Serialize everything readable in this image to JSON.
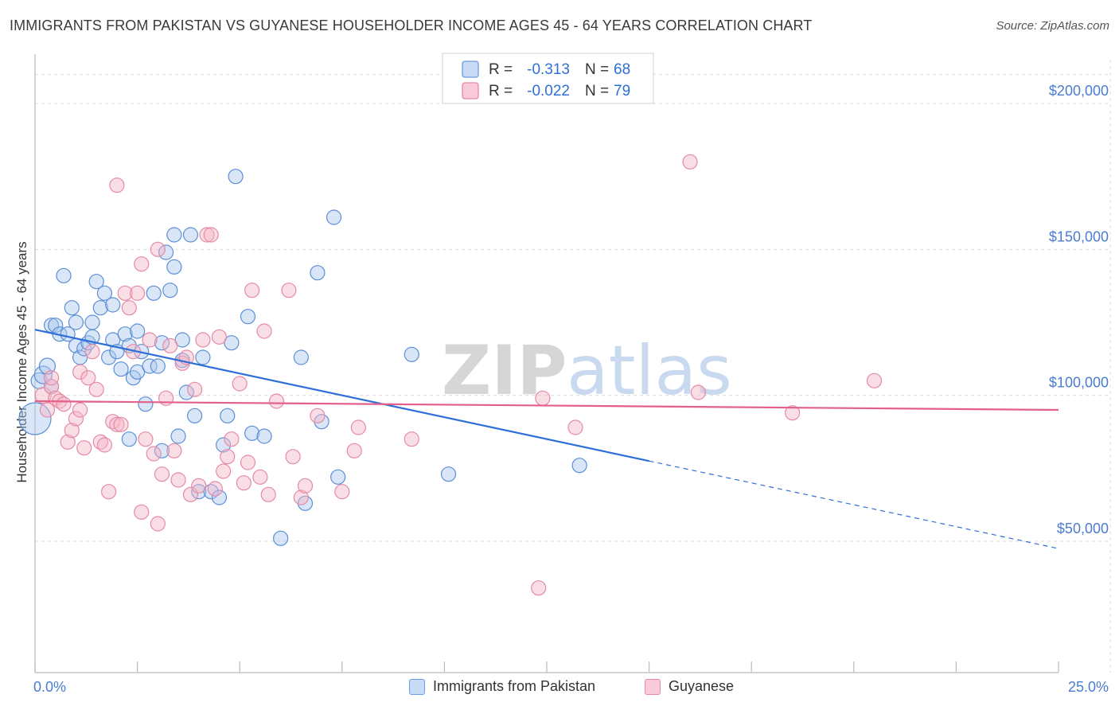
{
  "title": "IMMIGRANTS FROM PAKISTAN VS GUYANESE HOUSEHOLDER INCOME AGES 45 - 64 YEARS CORRELATION CHART",
  "source": "Source: ZipAtlas.com",
  "watermark": {
    "bold": "ZIP",
    "light": "atlas"
  },
  "colors": {
    "blue_fill": "#aac8ee",
    "blue_stroke": "#5b8fd6",
    "blue_line": "#2e6fd6",
    "pink_fill": "#f5b6c8",
    "pink_stroke": "#e58aa6",
    "pink_line": "#e2608a",
    "grid": "#dddddd",
    "tick_label": "#4a7cd0"
  },
  "chart_data": {
    "type": "scatter",
    "xlabel": "",
    "ylabel": "Householder Income Ages 45 - 64 years",
    "xlim": [
      0,
      25
    ],
    "ylim": [
      5000,
      215000
    ],
    "x_tick_labels": [
      "0.0%",
      "25.0%"
    ],
    "y_ticks": [
      50000,
      100000,
      150000,
      200000
    ],
    "y_tick_labels": [
      "$50,000",
      "$100,000",
      "$150,000",
      "$200,000"
    ],
    "legend": [
      {
        "name": "Immigrants from Pakistan",
        "r_label": "R =",
        "r": "-0.313",
        "n_label": "N =",
        "n": "68",
        "color": "blue"
      },
      {
        "name": "Guyanese",
        "r_label": "R =",
        "r": "-0.022",
        "n_label": "N =",
        "n": "79",
        "color": "pink"
      }
    ],
    "series": [
      {
        "name": "Immigrants from Pakistan",
        "color": "blue",
        "trend": {
          "x0": 0,
          "y0": 122500,
          "x1": 15,
          "y1": 77500,
          "dash_to_x": 25,
          "dash_to_y": 47500
        },
        "points": [
          [
            0.0,
            92000,
            20
          ],
          [
            0.1,
            105000,
            10
          ],
          [
            0.2,
            107000,
            11
          ],
          [
            0.3,
            110000,
            10
          ],
          [
            0.4,
            103000,
            9
          ],
          [
            0.4,
            124000,
            9
          ],
          [
            0.5,
            124000,
            9
          ],
          [
            0.6,
            121000,
            9
          ],
          [
            0.7,
            141000,
            9
          ],
          [
            0.8,
            121000,
            9
          ],
          [
            0.9,
            130000,
            9
          ],
          [
            1.0,
            117000,
            9
          ],
          [
            1.0,
            125000,
            9
          ],
          [
            1.1,
            113000,
            9
          ],
          [
            1.2,
            116000,
            9
          ],
          [
            1.3,
            118000,
            9
          ],
          [
            1.4,
            120000,
            9
          ],
          [
            1.4,
            125000,
            9
          ],
          [
            1.5,
            139000,
            9
          ],
          [
            1.6,
            130000,
            9
          ],
          [
            1.7,
            135000,
            9
          ],
          [
            1.8,
            113000,
            9
          ],
          [
            1.9,
            131000,
            9
          ],
          [
            1.9,
            119000,
            9
          ],
          [
            2.0,
            115000,
            9
          ],
          [
            2.1,
            109000,
            9
          ],
          [
            2.2,
            121000,
            9
          ],
          [
            2.3,
            117000,
            9
          ],
          [
            2.3,
            85000,
            9
          ],
          [
            2.4,
            106000,
            9
          ],
          [
            2.5,
            108000,
            9
          ],
          [
            2.5,
            122000,
            9
          ],
          [
            2.6,
            115000,
            9
          ],
          [
            2.7,
            97000,
            9
          ],
          [
            2.8,
            110000,
            9
          ],
          [
            2.9,
            135000,
            9
          ],
          [
            3.0,
            110000,
            9
          ],
          [
            3.1,
            81000,
            9
          ],
          [
            3.1,
            118000,
            9
          ],
          [
            3.2,
            149000,
            9
          ],
          [
            3.3,
            136000,
            9
          ],
          [
            3.4,
            155000,
            9
          ],
          [
            3.4,
            144000,
            9
          ],
          [
            3.5,
            86000,
            9
          ],
          [
            3.6,
            119000,
            9
          ],
          [
            3.6,
            112000,
            9
          ],
          [
            3.7,
            101000,
            9
          ],
          [
            3.8,
            155000,
            9
          ],
          [
            3.9,
            93000,
            9
          ],
          [
            4.0,
            67000,
            9
          ],
          [
            4.1,
            113000,
            9
          ],
          [
            4.3,
            67000,
            9
          ],
          [
            4.5,
            65000,
            9
          ],
          [
            4.6,
            83000,
            9
          ],
          [
            4.7,
            93000,
            9
          ],
          [
            4.8,
            118000,
            9
          ],
          [
            4.9,
            175000,
            9
          ],
          [
            5.2,
            127000,
            9
          ],
          [
            5.3,
            87000,
            9
          ],
          [
            5.6,
            86000,
            9
          ],
          [
            6.0,
            51000,
            9
          ],
          [
            6.5,
            113000,
            9
          ],
          [
            6.6,
            63000,
            9
          ],
          [
            6.9,
            142000,
            9
          ],
          [
            7.0,
            91000,
            9
          ],
          [
            7.3,
            161000,
            9
          ],
          [
            7.4,
            72000,
            9
          ],
          [
            9.2,
            114000,
            9
          ],
          [
            10.1,
            73000,
            9
          ],
          [
            13.3,
            76000,
            9
          ]
        ]
      },
      {
        "name": "Guyanese",
        "color": "pink",
        "trend": {
          "x0": 0,
          "y0": 98000,
          "x1": 25,
          "y1": 95000
        },
        "points": [
          [
            0.2,
            100000,
            10
          ],
          [
            0.3,
            95000,
            9
          ],
          [
            0.4,
            103000,
            9
          ],
          [
            0.4,
            106000,
            9
          ],
          [
            0.5,
            99000,
            9
          ],
          [
            0.6,
            98000,
            9
          ],
          [
            0.7,
            97000,
            9
          ],
          [
            0.8,
            84000,
            9
          ],
          [
            0.9,
            88000,
            9
          ],
          [
            1.0,
            92000,
            9
          ],
          [
            1.1,
            95000,
            9
          ],
          [
            1.1,
            108000,
            9
          ],
          [
            1.2,
            82000,
            9
          ],
          [
            1.3,
            106000,
            9
          ],
          [
            1.4,
            115000,
            9
          ],
          [
            1.5,
            102000,
            9
          ],
          [
            1.6,
            84000,
            9
          ],
          [
            1.7,
            83000,
            9
          ],
          [
            1.8,
            67000,
            9
          ],
          [
            1.9,
            91000,
            9
          ],
          [
            2.0,
            90000,
            9
          ],
          [
            2.0,
            172000,
            9
          ],
          [
            2.1,
            90000,
            9
          ],
          [
            2.2,
            135000,
            9
          ],
          [
            2.3,
            130000,
            9
          ],
          [
            2.4,
            115000,
            9
          ],
          [
            2.5,
            135000,
            9
          ],
          [
            2.6,
            145000,
            9
          ],
          [
            2.6,
            60000,
            9
          ],
          [
            2.7,
            85000,
            9
          ],
          [
            2.8,
            119000,
            9
          ],
          [
            2.9,
            80000,
            9
          ],
          [
            3.0,
            56000,
            9
          ],
          [
            3.0,
            150000,
            9
          ],
          [
            3.1,
            73000,
            9
          ],
          [
            3.2,
            99000,
            9
          ],
          [
            3.3,
            117000,
            9
          ],
          [
            3.4,
            81000,
            9
          ],
          [
            3.5,
            71000,
            9
          ],
          [
            3.6,
            111000,
            9
          ],
          [
            3.7,
            113000,
            9
          ],
          [
            3.8,
            66000,
            9
          ],
          [
            3.9,
            102000,
            9
          ],
          [
            4.0,
            69000,
            9
          ],
          [
            4.1,
            119000,
            9
          ],
          [
            4.2,
            155000,
            9
          ],
          [
            4.3,
            155000,
            9
          ],
          [
            4.4,
            68000,
            9
          ],
          [
            4.5,
            120000,
            9
          ],
          [
            4.6,
            74000,
            9
          ],
          [
            4.7,
            79000,
            9
          ],
          [
            4.8,
            85000,
            9
          ],
          [
            5.0,
            104000,
            9
          ],
          [
            5.1,
            70000,
            9
          ],
          [
            5.2,
            77000,
            9
          ],
          [
            5.3,
            136000,
            9
          ],
          [
            5.5,
            72000,
            9
          ],
          [
            5.6,
            122000,
            9
          ],
          [
            5.7,
            66000,
            9
          ],
          [
            5.9,
            98000,
            9
          ],
          [
            6.2,
            136000,
            9
          ],
          [
            6.3,
            79000,
            9
          ],
          [
            6.5,
            65000,
            9
          ],
          [
            6.6,
            69000,
            9
          ],
          [
            6.9,
            93000,
            9
          ],
          [
            7.5,
            67000,
            9
          ],
          [
            7.8,
            81000,
            9
          ],
          [
            7.9,
            89000,
            9
          ],
          [
            9.2,
            85000,
            9
          ],
          [
            12.3,
            34000,
            9
          ],
          [
            12.4,
            99000,
            9
          ],
          [
            13.2,
            89000,
            9
          ],
          [
            16.0,
            180000,
            9
          ],
          [
            16.2,
            101000,
            9
          ],
          [
            18.5,
            94000,
            9
          ],
          [
            20.5,
            105000,
            9
          ]
        ]
      }
    ]
  },
  "bottom_legend": [
    {
      "label": "Immigrants from Pakistan",
      "color": "blue"
    },
    {
      "label": "Guyanese",
      "color": "pink"
    }
  ]
}
